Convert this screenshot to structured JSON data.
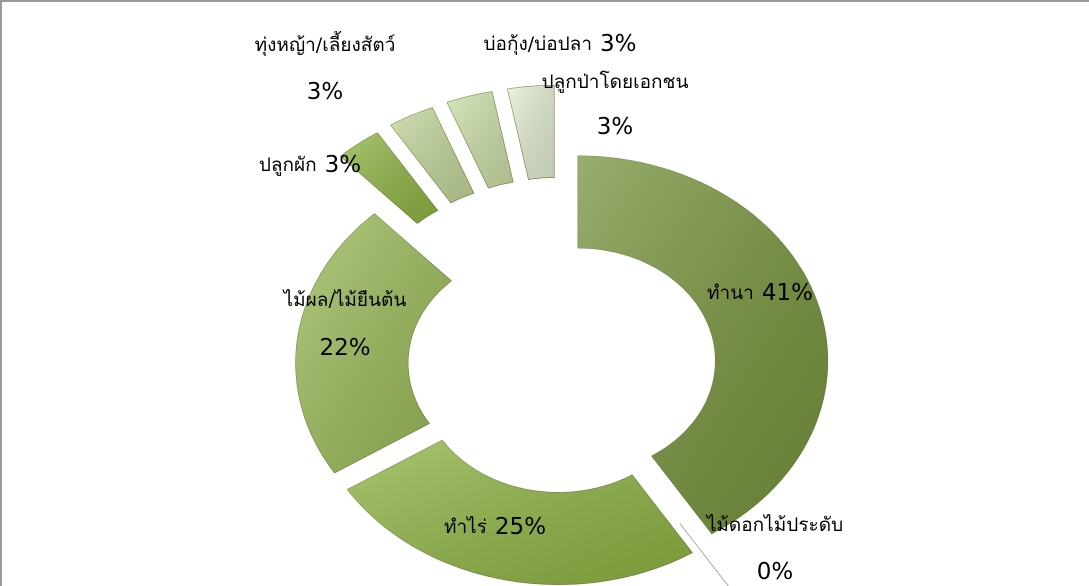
{
  "chart_data": {
    "type": "donut",
    "categories": [
      "ทำนา",
      "ไม้ดอกไม้ประดับ",
      "ทำไร่",
      "ไม้ผล/ไม้ยืนต้น",
      "ปลูกผัก",
      "ทุ่งหญ้า/เลี้ยงสัตว์",
      "บ่อกุ้ง/บ่อปลา",
      "ปลูกป่าโดยเอกชน"
    ],
    "values": [
      41,
      0,
      25,
      22,
      3,
      3,
      3,
      3
    ],
    "value_labels": [
      "41%",
      "0%",
      "25%",
      "22%",
      "3%",
      "3%",
      "3%",
      "3%"
    ],
    "colors": [
      "#77933c",
      "#8aa84a",
      "#8fb544",
      "#9bbb59",
      "#8fb544",
      "#c3d69b",
      "#cddfa8",
      "#e4eed2"
    ]
  }
}
